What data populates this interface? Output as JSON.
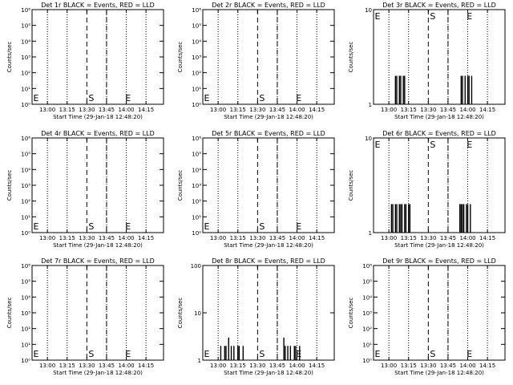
{
  "chart_data": [
    {
      "type": "line",
      "title": "Det 1r BLACK = Events, RED = LLD",
      "xlabel": "Start Time (29-Jan-18 12:48:20)",
      "ylabel": "Counts/sec",
      "x_ticks": [
        "13:00",
        "13:15",
        "13:30",
        "13:45",
        "14:00",
        "14:15"
      ],
      "y_scale": "log",
      "y_ticks": [
        {
          "value": 1,
          "label": "10⁰"
        },
        {
          "value": 10,
          "label": "10¹"
        },
        {
          "value": 100,
          "label": "10²"
        },
        {
          "value": 1000,
          "label": "10³"
        },
        {
          "value": 10000,
          "label": "10⁴"
        },
        {
          "value": 100000,
          "label": "10⁵"
        },
        {
          "value": 1000000,
          "label": "10⁶"
        }
      ],
      "ylim": [
        1,
        1000000
      ],
      "series": [
        {
          "x": [],
          "values": []
        }
      ],
      "markers": [
        {
          "label": "E",
          "x": "12:48"
        },
        {
          "label": "S",
          "x": "13:30"
        },
        {
          "label": "E",
          "x": "13:58"
        }
      ]
    },
    {
      "type": "line",
      "title": "Det 2r BLACK = Events, RED = LLD",
      "xlabel": "Start Time (29-Jan-18 12:48:20)",
      "ylabel": "Counts/sec",
      "x_ticks": [
        "13:00",
        "13:15",
        "13:30",
        "13:45",
        "14:00",
        "14:15"
      ],
      "y_scale": "log",
      "y_ticks": [
        {
          "value": 1,
          "label": "10⁰"
        },
        {
          "value": 10,
          "label": "10¹"
        },
        {
          "value": 100,
          "label": "10²"
        },
        {
          "value": 1000,
          "label": "10³"
        },
        {
          "value": 10000,
          "label": "10⁴"
        },
        {
          "value": 100000,
          "label": "10⁵"
        },
        {
          "value": 1000000,
          "label": "10⁶"
        }
      ],
      "ylim": [
        1,
        1000000
      ],
      "series": [
        {
          "x": [],
          "values": []
        }
      ],
      "markers": [
        {
          "label": "E",
          "x": "12:48"
        },
        {
          "label": "S",
          "x": "13:30"
        },
        {
          "label": "E",
          "x": "13:58"
        }
      ]
    },
    {
      "type": "line",
      "title": "Det 3r BLACK = Events, RED = LLD",
      "xlabel": "Start Time (29-Jan-18 12:48:20)",
      "ylabel": "Counts/sec",
      "x_ticks": [
        "13:00",
        "13:15",
        "13:30",
        "13:45",
        "14:00",
        "14:15"
      ],
      "y_scale": "log",
      "y_ticks": [
        {
          "value": 1,
          "label": "1"
        },
        {
          "value": 10,
          "label": "10"
        }
      ],
      "ylim": [
        1,
        10
      ],
      "series": [
        {
          "x": [
            "13:05",
            "13:06",
            "13:07",
            "13:08",
            "13:09",
            "13:10",
            "13:11",
            "13:12",
            "13:55",
            "13:56",
            "13:57",
            "13:58",
            "13:59",
            "14:00",
            "14:01",
            "14:02",
            "14:03"
          ],
          "values": [
            2,
            2,
            1,
            2,
            2,
            1,
            2,
            2,
            2,
            2,
            1,
            2,
            1,
            2,
            2,
            1,
            2
          ]
        }
      ],
      "markers": [
        {
          "label": "E",
          "x": "12:48"
        },
        {
          "label": "S",
          "x": "13:30"
        },
        {
          "label": "E",
          "x": "13:58"
        }
      ]
    },
    {
      "type": "line",
      "title": "Det 4r BLACK = Events, RED = LLD",
      "xlabel": "Start Time (29-Jan-18 12:48:20)",
      "ylabel": "Counts/sec",
      "x_ticks": [
        "13:00",
        "13:15",
        "13:30",
        "13:45",
        "14:00",
        "14:15"
      ],
      "y_scale": "log",
      "y_ticks": [
        {
          "value": 1,
          "label": "10⁰"
        },
        {
          "value": 10,
          "label": "10¹"
        },
        {
          "value": 100,
          "label": "10²"
        },
        {
          "value": 1000,
          "label": "10³"
        },
        {
          "value": 10000,
          "label": "10⁴"
        },
        {
          "value": 100000,
          "label": "10⁵"
        },
        {
          "value": 1000000,
          "label": "10⁶"
        }
      ],
      "ylim": [
        1,
        1000000
      ],
      "series": [
        {
          "x": [],
          "values": []
        }
      ],
      "markers": [
        {
          "label": "E",
          "x": "12:48"
        },
        {
          "label": "S",
          "x": "13:30"
        },
        {
          "label": "E",
          "x": "13:58"
        }
      ]
    },
    {
      "type": "line",
      "title": "Det 5r BLACK = Events, RED = LLD",
      "xlabel": "Start Time (29-Jan-18 12:48:20)",
      "ylabel": "Counts/sec",
      "x_ticks": [
        "13:00",
        "13:15",
        "13:30",
        "13:45",
        "14:00",
        "14:15"
      ],
      "y_scale": "log",
      "y_ticks": [
        {
          "value": 1,
          "label": "10⁰"
        },
        {
          "value": 10,
          "label": "10¹"
        },
        {
          "value": 100,
          "label": "10²"
        },
        {
          "value": 1000,
          "label": "10³"
        },
        {
          "value": 10000,
          "label": "10⁴"
        },
        {
          "value": 100000,
          "label": "10⁵"
        },
        {
          "value": 1000000,
          "label": "10⁶"
        }
      ],
      "ylim": [
        1,
        1000000
      ],
      "series": [
        {
          "x": [],
          "values": []
        }
      ],
      "markers": [
        {
          "label": "E",
          "x": "12:48"
        },
        {
          "label": "S",
          "x": "13:30"
        },
        {
          "label": "E",
          "x": "13:58"
        }
      ]
    },
    {
      "type": "line",
      "title": "Det 6r BLACK = Events, RED = LLD",
      "xlabel": "Start Time (29-Jan-18 12:48:20)",
      "ylabel": "Counts/sec",
      "x_ticks": [
        "13:00",
        "13:15",
        "13:30",
        "13:45",
        "14:00",
        "14:15"
      ],
      "y_scale": "log",
      "y_ticks": [
        {
          "value": 1,
          "label": "1"
        },
        {
          "value": 10,
          "label": "10"
        }
      ],
      "ylim": [
        1,
        10
      ],
      "series": [
        {
          "x": [
            "13:02",
            "13:03",
            "13:04",
            "13:05",
            "13:06",
            "13:07",
            "13:08",
            "13:09",
            "13:10",
            "13:11",
            "13:12",
            "13:13",
            "13:14",
            "13:15",
            "13:16",
            "13:54",
            "13:55",
            "13:56",
            "13:57",
            "13:58",
            "13:59",
            "14:00",
            "14:01",
            "14:02"
          ],
          "values": [
            2,
            2,
            1,
            2,
            2,
            1,
            2,
            2,
            2,
            1,
            2,
            2,
            1,
            2,
            2,
            2,
            2,
            2,
            2,
            1,
            2,
            2,
            1,
            2
          ]
        }
      ],
      "markers": [
        {
          "label": "E",
          "x": "12:48"
        },
        {
          "label": "S",
          "x": "13:30"
        },
        {
          "label": "E",
          "x": "13:58"
        }
      ]
    },
    {
      "type": "line",
      "title": "Det 7r BLACK = Events, RED = LLD",
      "xlabel": "Start Time (29-Jan-18 12:48:20)",
      "ylabel": "Counts/sec",
      "x_ticks": [
        "13:00",
        "13:15",
        "13:30",
        "13:45",
        "14:00",
        "14:15"
      ],
      "y_scale": "log",
      "y_ticks": [
        {
          "value": 1,
          "label": "10⁰"
        },
        {
          "value": 10,
          "label": "10¹"
        },
        {
          "value": 100,
          "label": "10²"
        },
        {
          "value": 1000,
          "label": "10³"
        },
        {
          "value": 10000,
          "label": "10⁴"
        },
        {
          "value": 100000,
          "label": "10⁵"
        },
        {
          "value": 1000000,
          "label": "10⁶"
        }
      ],
      "ylim": [
        1,
        1000000
      ],
      "series": [
        {
          "x": [],
          "values": []
        }
      ],
      "markers": [
        {
          "label": "E",
          "x": "12:48"
        },
        {
          "label": "S",
          "x": "13:30"
        },
        {
          "label": "E",
          "x": "13:58"
        }
      ]
    },
    {
      "type": "line",
      "title": "Det 8r BLACK = Events, RED = LLD",
      "xlabel": "Start Time (29-Jan-18 12:48:20)",
      "ylabel": "Counts/sec",
      "x_ticks": [
        "13:00",
        "13:15",
        "13:30",
        "13:45",
        "14:00",
        "14:15"
      ],
      "y_scale": "log",
      "y_ticks": [
        {
          "value": 1,
          "label": "1"
        },
        {
          "value": 10,
          "label": "10"
        },
        {
          "value": 100,
          "label": "100"
        }
      ],
      "ylim": [
        1,
        100
      ],
      "series": [
        {
          "x": [
            "13:00",
            "13:02",
            "13:03",
            "13:05",
            "13:06",
            "13:08",
            "13:09",
            "13:10",
            "13:12",
            "13:13",
            "13:15",
            "13:16",
            "13:18",
            "13:19",
            "13:50",
            "13:51",
            "13:53",
            "13:54",
            "13:55",
            "13:57",
            "13:58",
            "13:59",
            "14:01",
            "14:02"
          ],
          "values": [
            1,
            2,
            1,
            2,
            2,
            3,
            1,
            2,
            2,
            1,
            2,
            2,
            1,
            2,
            3,
            2,
            2,
            1,
            2,
            1,
            2,
            2,
            1,
            2
          ]
        }
      ],
      "markers": [
        {
          "label": "E",
          "x": "12:48"
        },
        {
          "label": "S",
          "x": "13:30"
        },
        {
          "label": "E",
          "x": "13:58"
        }
      ]
    },
    {
      "type": "line",
      "title": "Det 9r BLACK = Events, RED = LLD",
      "xlabel": "Start Time (29-Jan-18 12:48:20)",
      "ylabel": "Counts/sec",
      "x_ticks": [
        "13:00",
        "13:15",
        "13:30",
        "13:45",
        "14:00",
        "14:15"
      ],
      "y_scale": "log",
      "y_ticks": [
        {
          "value": 1,
          "label": "10⁰"
        },
        {
          "value": 10,
          "label": "10¹"
        },
        {
          "value": 100,
          "label": "10²"
        },
        {
          "value": 1000,
          "label": "10³"
        },
        {
          "value": 10000,
          "label": "10⁴"
        },
        {
          "value": 100000,
          "label": "10⁵"
        },
        {
          "value": 1000000,
          "label": "10⁶"
        }
      ],
      "ylim": [
        1,
        1000000
      ],
      "series": [
        {
          "x": [],
          "values": []
        }
      ],
      "markers": [
        {
          "label": "E",
          "x": "12:48"
        },
        {
          "label": "S",
          "x": "13:30"
        },
        {
          "label": "E",
          "x": "13:58"
        }
      ]
    }
  ]
}
